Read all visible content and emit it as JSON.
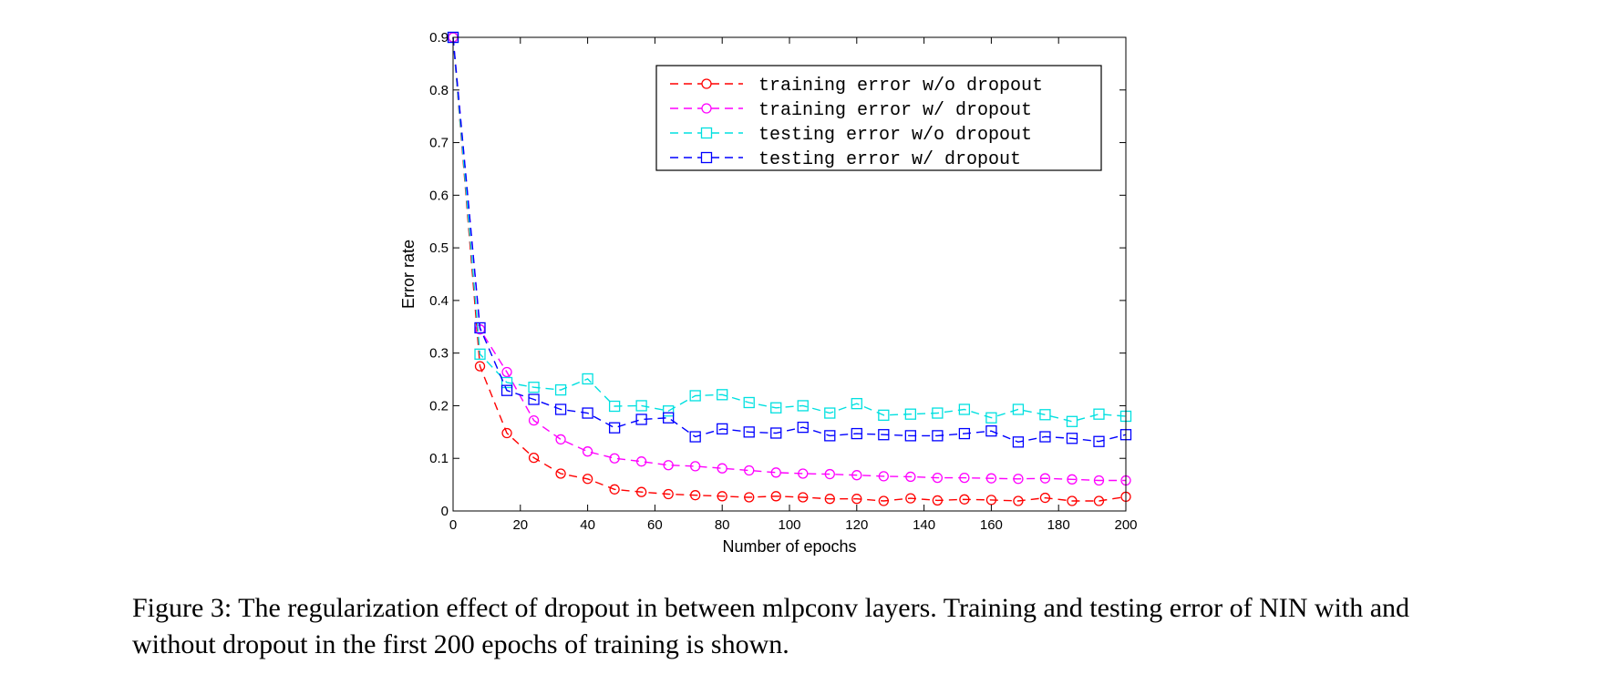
{
  "chart_data": {
    "type": "line",
    "title": "",
    "xlabel": "Number of epochs",
    "ylabel": "Error rate",
    "xlim": [
      0,
      200
    ],
    "ylim": [
      0,
      0.9
    ],
    "x_ticks": [
      0,
      20,
      40,
      60,
      80,
      100,
      120,
      140,
      160,
      180,
      200
    ],
    "y_ticks": [
      0,
      0.1,
      0.2,
      0.3,
      0.4,
      0.5,
      0.6,
      0.7,
      0.8,
      0.9
    ],
    "x_tick_labels": [
      "0",
      "20",
      "40",
      "60",
      "80",
      "100",
      "120",
      "140",
      "160",
      "180",
      "200"
    ],
    "y_tick_labels": [
      "0",
      "0.1",
      "0.2",
      "0.3",
      "0.4",
      "0.5",
      "0.6",
      "0.7",
      "0.8",
      "0.9"
    ],
    "grid": false,
    "legend_position": "top-right",
    "x": [
      0,
      8,
      16,
      24,
      32,
      40,
      48,
      56,
      64,
      72,
      80,
      88,
      96,
      104,
      112,
      120,
      128,
      136,
      144,
      152,
      160,
      168,
      176,
      184,
      192,
      200
    ],
    "series": [
      {
        "name": "training error w/o dropout",
        "color": "#ff0000",
        "marker": "circle",
        "values": [
          0.9,
          0.275,
          0.148,
          0.101,
          0.071,
          0.061,
          0.041,
          0.036,
          0.032,
          0.03,
          0.028,
          0.026,
          0.028,
          0.026,
          0.023,
          0.023,
          0.019,
          0.024,
          0.02,
          0.022,
          0.021,
          0.019,
          0.025,
          0.019,
          0.019,
          0.027
        ]
      },
      {
        "name": "training error w/ dropout",
        "color": "#ff00ff",
        "marker": "circle",
        "values": [
          0.9,
          0.345,
          0.264,
          0.172,
          0.136,
          0.113,
          0.1,
          0.094,
          0.087,
          0.085,
          0.081,
          0.077,
          0.073,
          0.071,
          0.07,
          0.068,
          0.066,
          0.065,
          0.063,
          0.063,
          0.062,
          0.061,
          0.062,
          0.06,
          0.058,
          0.058
        ]
      },
      {
        "name": "testing error w/o dropout",
        "color": "#00e0e0",
        "marker": "square",
        "values": [
          0.9,
          0.298,
          0.244,
          0.235,
          0.23,
          0.251,
          0.199,
          0.2,
          0.19,
          0.219,
          0.221,
          0.206,
          0.196,
          0.2,
          0.186,
          0.204,
          0.182,
          0.184,
          0.186,
          0.193,
          0.177,
          0.193,
          0.183,
          0.17,
          0.184,
          0.18
        ]
      },
      {
        "name": "testing error w/ dropout",
        "color": "#0000ff",
        "marker": "square",
        "values": [
          0.9,
          0.348,
          0.229,
          0.212,
          0.193,
          0.186,
          0.158,
          0.174,
          0.177,
          0.141,
          0.156,
          0.15,
          0.148,
          0.159,
          0.143,
          0.147,
          0.145,
          0.143,
          0.143,
          0.147,
          0.152,
          0.131,
          0.141,
          0.138,
          0.132,
          0.145
        ]
      }
    ]
  },
  "caption": "Figure 3: The regularization effect of dropout in between mlpconv layers. Training and testing error of NIN with and without dropout in the first 200 epochs of training is shown."
}
